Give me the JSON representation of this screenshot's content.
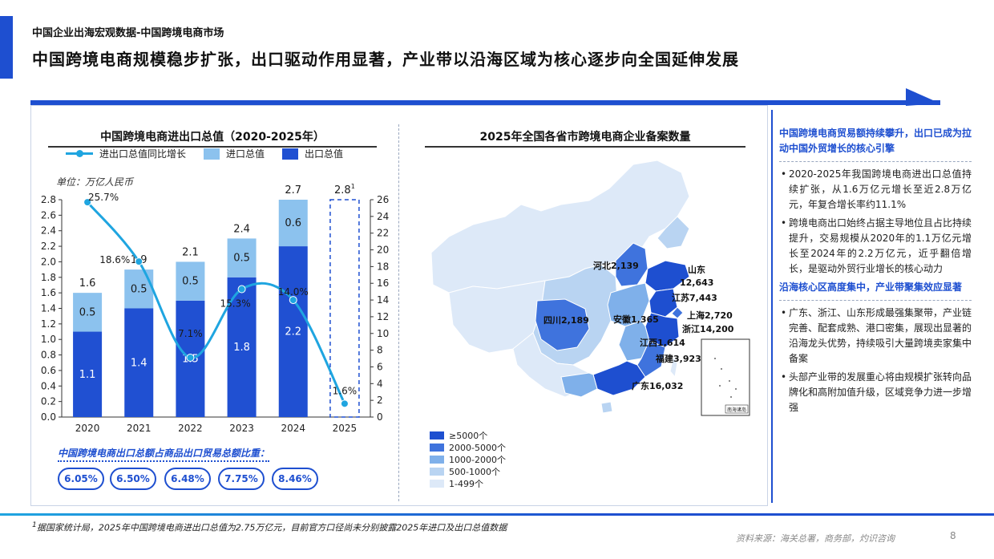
{
  "header": {
    "kicker": "中国企业出海宏观数据-中国跨境电商市场",
    "headline": "中国跨境电商规模稳步扩张，出口驱动作用显著，产业带以沿海区域为核心逐步向全国延伸发展"
  },
  "colors": {
    "brand": "#1e4fd0",
    "export": "#2050d2",
    "import": "#8cc2ee",
    "growth_line": "#1fa5e0"
  },
  "chart_data": [
    {
      "type": "bar",
      "title": "中国跨境电商进出口总值（2020-2025年）",
      "unit_note": "单位：万亿人民币",
      "categories": [
        "2020",
        "2021",
        "2022",
        "2023",
        "2024",
        "2025"
      ],
      "series": [
        {
          "name": "出口总值",
          "values": [
            1.1,
            1.4,
            1.5,
            1.8,
            2.2,
            null
          ],
          "labels": [
            "1.1",
            "1.4",
            "1.5",
            "1.8",
            "2.2",
            ""
          ]
        },
        {
          "name": "进口总值",
          "values": [
            0.5,
            0.5,
            0.5,
            0.5,
            0.6,
            null
          ],
          "labels": [
            "0.5",
            "0.5",
            "0.5",
            "0.5",
            "0.6",
            ""
          ]
        },
        {
          "name": "进出口总值同比增长",
          "axis": "right",
          "unit": "%",
          "values": [
            25.7,
            18.6,
            7.1,
            15.3,
            14.0,
            1.6
          ],
          "labels": [
            "25.7%",
            "18.6%",
            "7.1%",
            "15.3%",
            "14.0%",
            "1.6%"
          ]
        }
      ],
      "totals": [
        "1.6",
        "1.9",
        "2.1",
        "2.4",
        "2.7",
        "2.8"
      ],
      "total_2025_footnote_mark": "1",
      "projected_total_2025": 2.8,
      "ylim": [
        0,
        2.8
      ],
      "yticks": [
        "0.0",
        "0.2",
        "0.4",
        "0.6",
        "0.8",
        "1.0",
        "1.2",
        "1.4",
        "1.6",
        "1.8",
        "2.0",
        "2.2",
        "2.4",
        "2.6",
        "2.8"
      ],
      "y2lim": [
        0,
        26
      ],
      "y2ticks": [
        "0",
        "2",
        "4",
        "6",
        "8",
        "10",
        "12",
        "14",
        "16",
        "18",
        "20",
        "22",
        "24",
        "26"
      ],
      "legend_placement": "top"
    },
    {
      "type": "choropleth",
      "title": "2025年全国各省市跨境电商企业备案数量",
      "labeled_regions": [
        {
          "name": "河北",
          "label": "河北2,139",
          "value": 2139
        },
        {
          "name": "山东",
          "label": "山东",
          "value_label": "12,643",
          "value": 12643
        },
        {
          "name": "江苏",
          "label": "江苏7,443",
          "value": 7443
        },
        {
          "name": "上海",
          "label": "上海2,720",
          "value": 2720
        },
        {
          "name": "浙江",
          "label": "浙江14,200",
          "value": 14200
        },
        {
          "name": "四川",
          "label": "四川2,189",
          "value": 2189
        },
        {
          "name": "安徽",
          "label": "安徽1,365",
          "value": 1365
        },
        {
          "name": "江西",
          "label": "江西1,614",
          "value": 1614
        },
        {
          "name": "福建",
          "label": "福建3,923",
          "value": 3923
        },
        {
          "name": "广东",
          "label": "广东16,032",
          "value": 16032
        }
      ],
      "legend": [
        {
          "label": "≥5000个",
          "color": "#1e4fd0"
        },
        {
          "label": "2000-5000个",
          "color": "#3f73dd"
        },
        {
          "label": "1000-2000个",
          "color": "#7fb0ea"
        },
        {
          "label": "500-1000个",
          "color": "#b9d4f2"
        },
        {
          "label": "1-499个",
          "color": "#dde9f8"
        }
      ],
      "inset_label": "南海诸岛"
    }
  ],
  "ratio": {
    "title": "中国跨境电商出口总额占商品出口贸易总额比重：",
    "values": [
      "6.05%",
      "6.50%",
      "6.48%",
      "7.75%",
      "8.46%"
    ]
  },
  "side": {
    "heading1": "中国跨境电商贸易额持续攀升，出口已成为拉动中国外贸增长的核心引擎",
    "p1": "2020-2025年我国跨境电商进出口总值持续扩张，从1.6万亿元增长至近2.8万亿元，年复合增长率约11.1%",
    "p2": "跨境电商出口始终占据主导地位且占比持续提升，交易规模从2020年的1.1万亿元增长至2024年的2.2万亿元，近乎翻倍增长，是驱动外贸行业增长的核心动力",
    "heading2": "沿海核心区高度集中，产业带聚集效应显著",
    "p3": "广东、浙江、山东形成最强集聚带，产业链完善、配套成熟、港口密集，展现出显著的沿海龙头优势，持续吸引大量跨境卖家集中备案",
    "p4": "头部产业带的发展重心将由规模扩张转向品牌化和高附加值升级，区域竞争力进一步增强"
  },
  "footer": {
    "footnote_mark": "1",
    "footnote": "据国家统计局，2025年中国跨境电商进出口总值为2.75万亿元，目前官方口径尚未分别披露2025年进口及出口总值数据",
    "source": "资料来源：海关总署，商务部，灼识咨询",
    "page": "8"
  }
}
